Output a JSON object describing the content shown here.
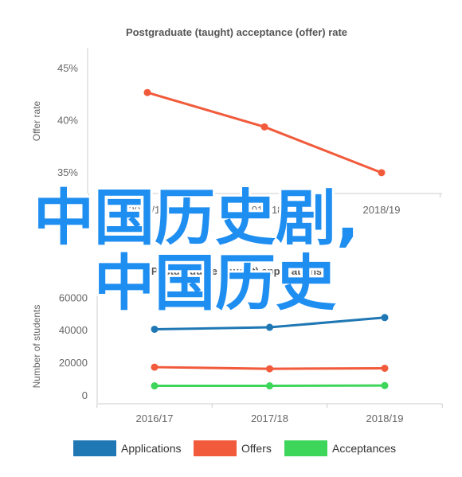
{
  "chart_data": [
    {
      "type": "line",
      "title": "Postgraduate (taught) acceptance (offer) rate",
      "ylabel": "Offer rate",
      "xlabel": "",
      "categories": [
        "2016/17",
        "2017/18",
        "2018/19"
      ],
      "series": [
        {
          "values": [
            42.7,
            39.4,
            35.0
          ],
          "color": "#f15a3b"
        }
      ],
      "ylim": [
        33,
        47
      ],
      "yticks": [
        "35%",
        "40%",
        "45%"
      ],
      "ytick_values": [
        35,
        40,
        45
      ],
      "grid": false,
      "legend": "none"
    },
    {
      "type": "line",
      "title": "Postgraduate (taught) applications",
      "ylabel": "Number of students",
      "xlabel": "",
      "categories": [
        "2016/17",
        "2017/18",
        "2018/19"
      ],
      "series": [
        {
          "name": "Applications",
          "values": [
            40800,
            42000,
            48000
          ],
          "color": "#1f78b4"
        },
        {
          "name": "Offers",
          "values": [
            17500,
            16500,
            16800
          ],
          "color": "#f15a3b"
        },
        {
          "name": "Acceptances",
          "values": [
            6000,
            6000,
            6200
          ],
          "color": "#3dd65a"
        }
      ],
      "ylim": [
        -5000,
        67000
      ],
      "yticks": [
        "0",
        "20000",
        "40000",
        "60000"
      ],
      "ytick_values": [
        0,
        20000,
        40000,
        60000
      ],
      "grid": false,
      "legend": "bottom"
    }
  ],
  "overlay": {
    "line1": "中国历史剧,",
    "line2": "中国历史",
    "color": "#1f8ef1"
  }
}
